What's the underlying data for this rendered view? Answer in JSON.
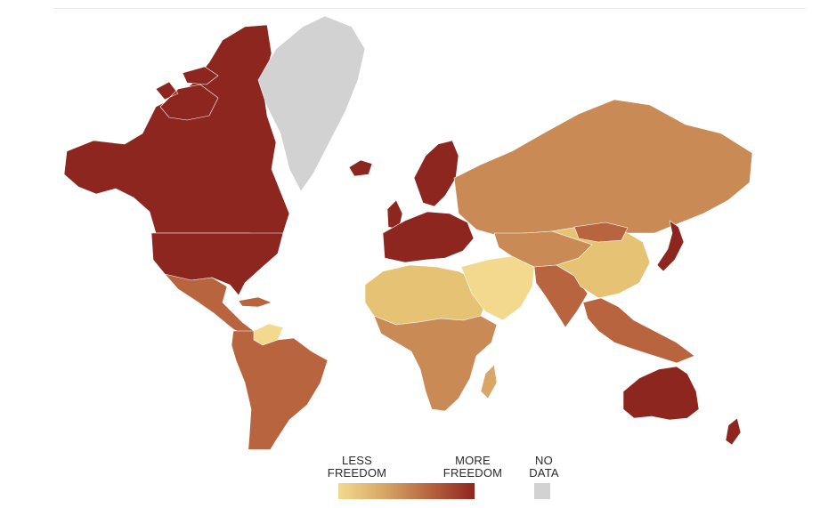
{
  "legend": {
    "less_label": "LESS FREEDOM",
    "more_label": "MORE FREEDOM",
    "nodata_label": "NO DATA"
  },
  "colors": {
    "more_freedom": "#8e2620",
    "high": "#a83d2b",
    "mid_high": "#b8653f",
    "mid": "#c98a55",
    "mid_low": "#d8a767",
    "low": "#e6c274",
    "less_freedom": "#f3d98d",
    "no_data": "#d2d2d2"
  },
  "regions": [
    {
      "name": "North America",
      "level": "more_freedom"
    },
    {
      "name": "Greenland",
      "level": "no_data"
    },
    {
      "name": "Iceland",
      "level": "more_freedom"
    },
    {
      "name": "Mexico & Central America",
      "level": "mid_high"
    },
    {
      "name": "Venezuela",
      "level": "less_freedom"
    },
    {
      "name": "South America",
      "level": "mid_high"
    },
    {
      "name": "Europe",
      "level": "more_freedom"
    },
    {
      "name": "Russia",
      "level": "mid"
    },
    {
      "name": "North Africa",
      "level": "low"
    },
    {
      "name": "Sub-Saharan Africa",
      "level": "mid"
    },
    {
      "name": "Middle East",
      "level": "less_freedom"
    },
    {
      "name": "Asia",
      "level": "mid_low"
    },
    {
      "name": "Japan",
      "level": "more_freedom"
    },
    {
      "name": "Australia",
      "level": "more_freedom"
    },
    {
      "name": "New Zealand",
      "level": "more_freedom"
    }
  ]
}
